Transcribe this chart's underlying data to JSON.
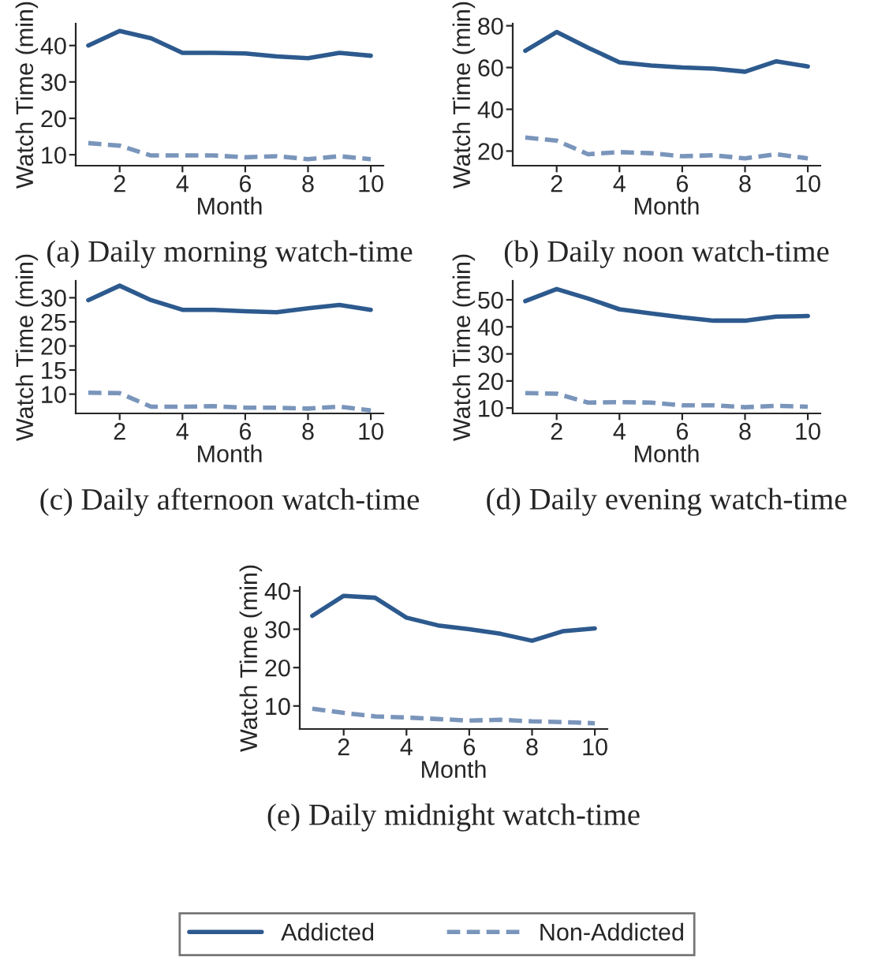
{
  "chart_data": [
    {
      "type": "line",
      "title": "(a) Daily morning watch-time",
      "xlabel": "Month",
      "ylabel": "Watch Time (min)",
      "x": [
        1,
        2,
        3,
        4,
        5,
        6,
        7,
        8,
        9,
        10
      ],
      "xlim": [
        0.6,
        10.4
      ],
      "xticks": [
        2,
        4,
        6,
        8,
        10
      ],
      "ylim": [
        7,
        46
      ],
      "yticks": [
        10,
        20,
        30,
        40
      ],
      "grid": false,
      "legend": "bottom",
      "series": [
        {
          "name": "Addicted",
          "color": "#2d5a8e",
          "line_style": "solid",
          "values": [
            40,
            44,
            42,
            38,
            38,
            37.8,
            37,
            36.5,
            38,
            37.2
          ]
        },
        {
          "name": "Non-Addicted",
          "color": "#7a95bb",
          "line_style": "dashed",
          "values": [
            13.2,
            12.5,
            9.8,
            9.8,
            9.8,
            9.3,
            9.6,
            8.8,
            9.6,
            8.8
          ]
        }
      ]
    },
    {
      "type": "line",
      "title": "(b) Daily noon watch-time",
      "xlabel": "Month",
      "ylabel": "Watch Time (min)",
      "x": [
        1,
        2,
        3,
        4,
        5,
        6,
        7,
        8,
        9,
        10
      ],
      "xlim": [
        0.6,
        10.4
      ],
      "xticks": [
        2,
        4,
        6,
        8,
        10
      ],
      "ylim": [
        13,
        81
      ],
      "yticks": [
        20,
        40,
        60,
        80
      ],
      "grid": false,
      "series": [
        {
          "color": "#2d5a8e",
          "line_style": "solid",
          "values": [
            68,
            77,
            69.5,
            62.5,
            61,
            60,
            59.5,
            58,
            63,
            60.5
          ]
        },
        {
          "color": "#7a95bb",
          "line_style": "dashed",
          "values": [
            26.5,
            25,
            18.5,
            19.5,
            19,
            17.5,
            18,
            16.5,
            18.5,
            16.5
          ]
        }
      ]
    },
    {
      "type": "line",
      "title": "(c) Daily afternoon watch-time",
      "xlabel": "Month",
      "ylabel": "Watch Time (min)",
      "x": [
        1,
        2,
        3,
        4,
        5,
        6,
        7,
        8,
        9,
        10
      ],
      "xlim": [
        0.6,
        10.4
      ],
      "xticks": [
        2,
        4,
        6,
        8,
        10
      ],
      "ylim": [
        6,
        33.5
      ],
      "yticks": [
        10,
        15,
        20,
        25,
        30
      ],
      "grid": false,
      "series": [
        {
          "color": "#2d5a8e",
          "line_style": "solid",
          "values": [
            29.5,
            32.5,
            29.5,
            27.5,
            27.5,
            27.2,
            27,
            27.8,
            28.5,
            27.5
          ]
        },
        {
          "color": "#7a95bb",
          "line_style": "dashed",
          "values": [
            10.3,
            10.2,
            7.4,
            7.4,
            7.5,
            7.2,
            7.2,
            7,
            7.4,
            6.6
          ]
        }
      ]
    },
    {
      "type": "line",
      "title": "(d) Daily evening watch-time",
      "xlabel": "Month",
      "ylabel": "Watch Time (min)",
      "x": [
        1,
        2,
        3,
        4,
        5,
        6,
        7,
        8,
        9,
        10
      ],
      "xlim": [
        0.6,
        10.4
      ],
      "xticks": [
        2,
        4,
        6,
        8,
        10
      ],
      "ylim": [
        8,
        57
      ],
      "yticks": [
        10,
        20,
        30,
        40,
        50
      ],
      "grid": false,
      "series": [
        {
          "color": "#2d5a8e",
          "line_style": "solid",
          "values": [
            49.5,
            54,
            50.5,
            46.5,
            45,
            43.5,
            42.3,
            42.3,
            43.8,
            44
          ]
        },
        {
          "color": "#7a95bb",
          "line_style": "dashed",
          "values": [
            15.5,
            15.3,
            12,
            12.2,
            12,
            11,
            11,
            10.3,
            10.8,
            10.5
          ]
        }
      ]
    },
    {
      "type": "line",
      "title": "(e) Daily midnight watch-time",
      "xlabel": "Month",
      "ylabel": "Watch Time (min)",
      "x": [
        1,
        2,
        3,
        4,
        5,
        6,
        7,
        8,
        9,
        10
      ],
      "xlim": [
        0.6,
        10.4
      ],
      "xticks": [
        2,
        4,
        6,
        8,
        10
      ],
      "ylim": [
        4,
        41
      ],
      "yticks": [
        10,
        20,
        30,
        40
      ],
      "grid": false,
      "series": [
        {
          "color": "#2d5a8e",
          "line_style": "solid",
          "values": [
            33.5,
            38.7,
            38.2,
            33,
            31,
            30,
            28.8,
            27,
            29.5,
            30.2
          ]
        },
        {
          "color": "#7a95bb",
          "line_style": "dashed",
          "values": [
            9.3,
            8.2,
            7.3,
            7,
            6.6,
            6.2,
            6.4,
            6,
            5.8,
            5.5
          ]
        }
      ]
    }
  ]
}
